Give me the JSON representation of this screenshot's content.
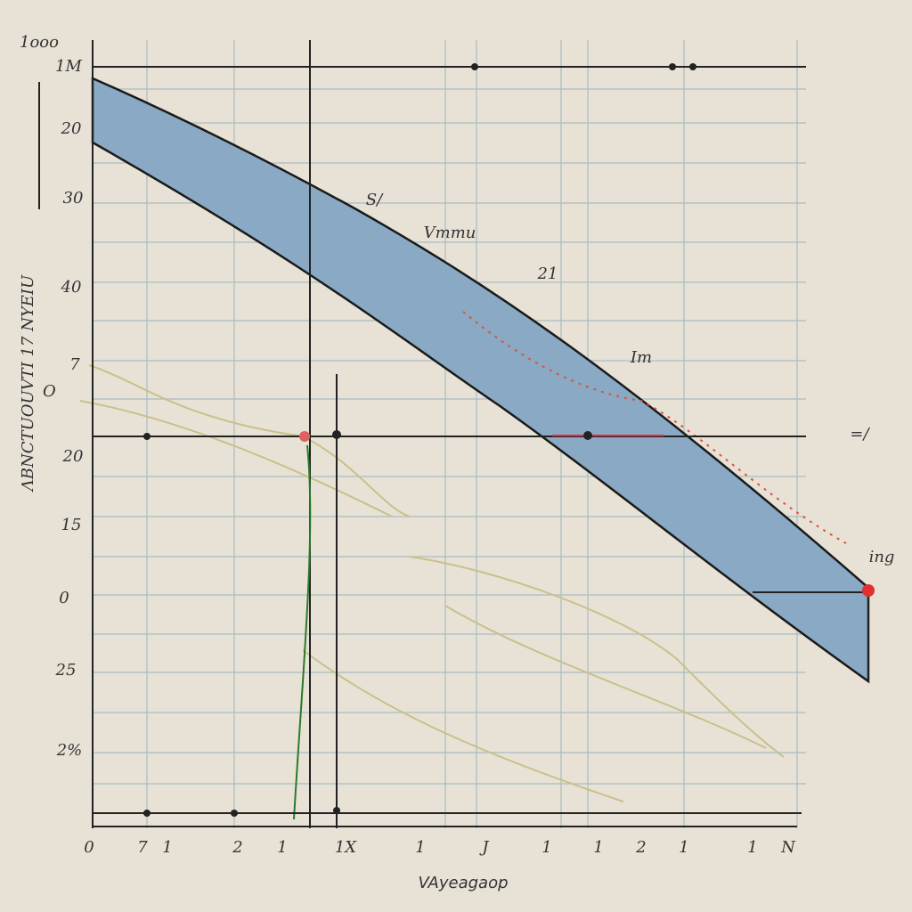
{
  "header": {
    "corner_label": "1ooo",
    "top_label": "1M"
  },
  "y_axis": {
    "title": "ΛBNCTUOUVTI 17 NYEIU",
    "subtitle": "O",
    "tick_labels": [
      "20",
      "30",
      "40",
      "7",
      "20",
      "15",
      "0",
      "25",
      "2%"
    ]
  },
  "x_axis": {
    "title": "VAyeagaop",
    "tick_labels": [
      "0",
      "7",
      "1",
      "2",
      "1",
      "1X",
      "1",
      "J",
      "1",
      "1",
      "2",
      "1",
      "1",
      "N"
    ]
  },
  "annotations": [
    "S/",
    "Vmmu",
    "21",
    "Im",
    "ing",
    "=/"
  ]
}
